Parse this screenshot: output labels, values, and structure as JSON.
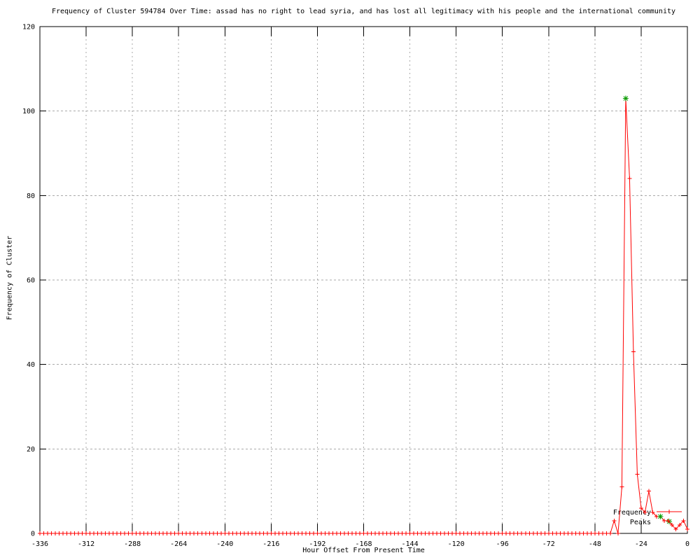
{
  "chart": {
    "accent_color": "#ff0000",
    "peak_color": "#00a000",
    "grid_color": "#aaaaaa",
    "border_color": "#000000",
    "background": "#ffffff"
  },
  "legend": {
    "position": "bottom-right-inside",
    "entries": [
      {
        "label": "Frequency",
        "color": "#ff0000",
        "style": "line-with-plus-points"
      },
      {
        "label": "Peaks",
        "color": "#00a000",
        "style": "asterisk-points"
      }
    ]
  },
  "chart_data": {
    "type": "line",
    "title": "Frequency of Cluster 594784 Over Time: assad has no right to lead syria, and has lost all legitimacy with his people and the international community",
    "xlabel": "Hour Offset From Present Time",
    "ylabel": "Frequency of Cluster",
    "xlim": [
      -336,
      0
    ],
    "ylim": [
      0,
      120
    ],
    "x_ticks": [
      -336,
      -312,
      -288,
      -264,
      -240,
      -216,
      -192,
      -168,
      -144,
      -120,
      -96,
      -72,
      -48,
      -24,
      0
    ],
    "y_ticks": [
      0,
      20,
      40,
      60,
      80,
      100,
      120
    ],
    "grid": true,
    "x_start": -336,
    "x_end": 0,
    "x_step": 2,
    "baseline_value": 0,
    "series": [
      {
        "name": "Frequency",
        "color": "#ff0000",
        "marker": "plus",
        "nonzero_values": {
          "-38": 3,
          "-34": 11,
          "-32": 103,
          "-30": 84,
          "-28": 43,
          "-26": 14,
          "-24": 6,
          "-22": 5,
          "-20": 10,
          "-18": 5,
          "-16": 4,
          "-14": 4,
          "-12": 3,
          "-10": 3,
          "-8": 2,
          "-6": 1,
          "-4": 2,
          "-2": 3,
          "0": 1
        }
      },
      {
        "name": "Peaks",
        "color": "#00a000",
        "marker": "asterisk",
        "points": [
          [
            -32,
            103
          ],
          [
            -14,
            4
          ]
        ]
      }
    ]
  }
}
